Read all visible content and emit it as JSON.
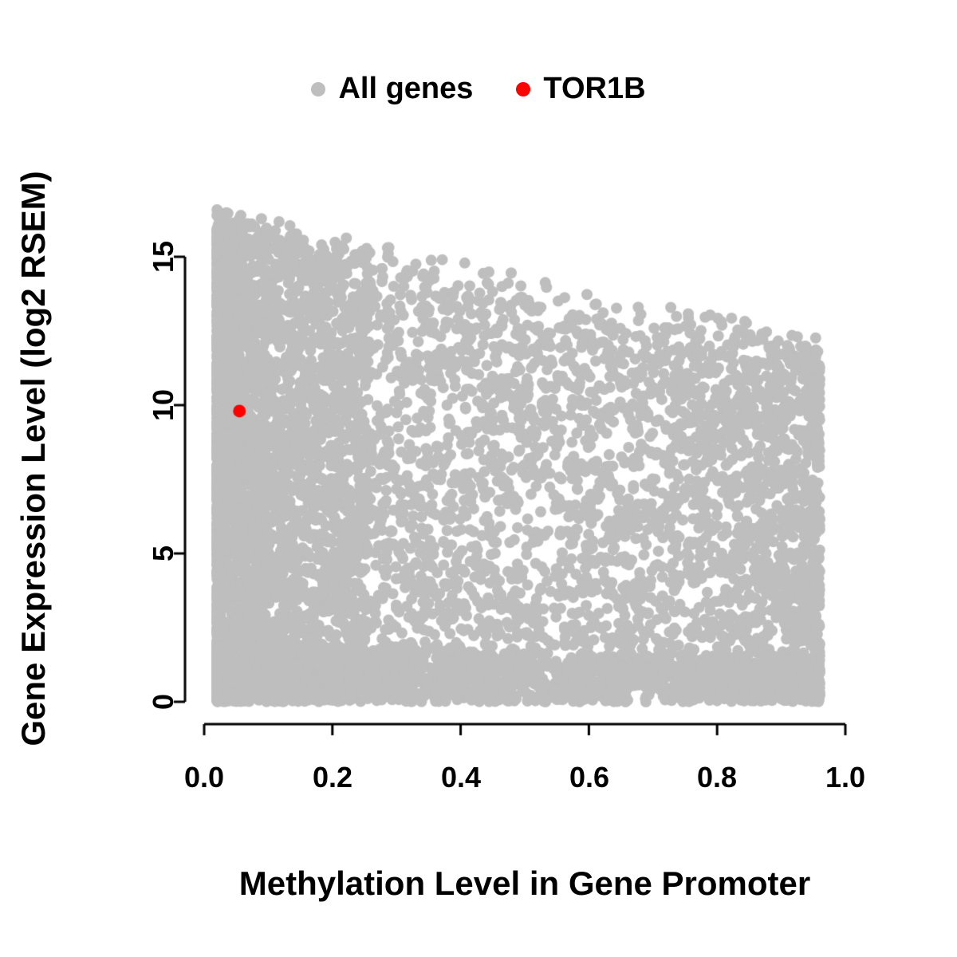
{
  "chart_data": {
    "type": "scatter",
    "title": "",
    "xlabel": "Methylation Level in Gene Promoter",
    "ylabel": "Gene Expression Level (log2 RSEM)",
    "xlim": [
      0,
      1
    ],
    "ylim": [
      0,
      17
    ],
    "grid": false,
    "legend_position": "top",
    "x_ticks": [
      0.0,
      0.2,
      0.4,
      0.6,
      0.8,
      1.0
    ],
    "y_ticks": [
      0,
      5,
      10,
      15
    ],
    "x_tick_labels": [
      "0.0",
      "0.2",
      "0.4",
      "0.6",
      "0.8",
      "1.0"
    ],
    "y_tick_labels": [
      "0",
      "5",
      "10",
      "15"
    ],
    "axis_color": "#000000",
    "series": [
      {
        "name": "All genes",
        "color": "#bebebe",
        "marker_radius_px": 7,
        "point_cloud": {
          "description": "dense cloud of genes; expression spans 0-16.5 at low promoter methylation and the upper envelope declines to ~12 at methylation ~0.95; solid row of points at expression 0 across all methylation levels",
          "n": 9000,
          "seed": 20,
          "x_range": [
            0.02,
            0.96
          ],
          "x_left_fraction": 0.4,
          "x_right_fraction": 0.08,
          "envelope_y_at_x0": 16.3,
          "envelope_y_at_x1": 11.8,
          "envelope_noise": 0.5,
          "y_bottom_fraction": 0.22
        }
      },
      {
        "name": "TOR1B",
        "color": "#ff0000",
        "marker_radius_px": 8,
        "points": [
          [
            0.055,
            9.8
          ]
        ]
      }
    ]
  }
}
